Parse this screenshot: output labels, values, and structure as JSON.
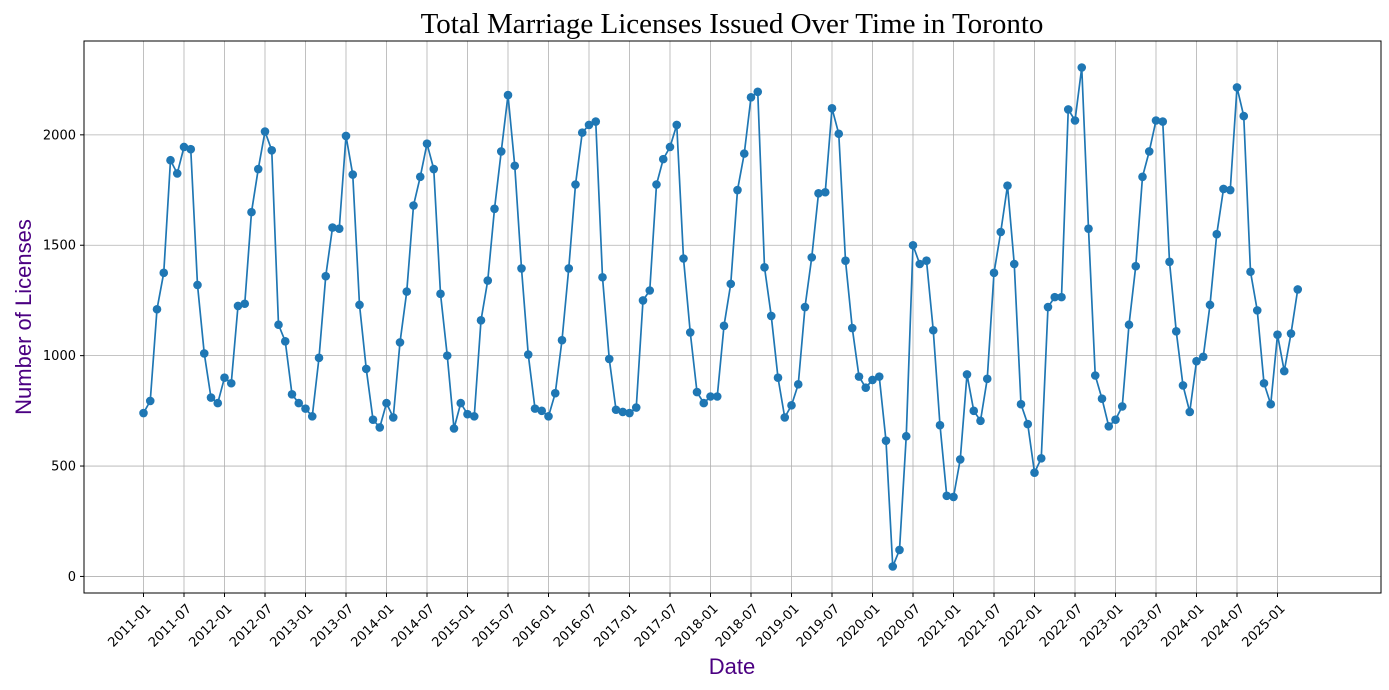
{
  "chart_data": {
    "type": "line",
    "title": "Total Marriage Licenses Issued Over Time in Toronto",
    "xlabel": "Date",
    "ylabel": "Number of Licenses",
    "x_ticks": [
      "2011-01",
      "2011-07",
      "2012-01",
      "2012-07",
      "2013-01",
      "2013-07",
      "2014-01",
      "2014-07",
      "2015-01",
      "2015-07",
      "2016-01",
      "2016-07",
      "2017-01",
      "2017-07",
      "2018-01",
      "2018-07",
      "2019-01",
      "2019-07",
      "2020-01",
      "2020-07",
      "2021-01",
      "2021-07",
      "2022-01",
      "2022-07",
      "2023-01",
      "2023-07",
      "2024-01",
      "2024-07",
      "2025-01"
    ],
    "y_ticks": [
      0,
      500,
      1000,
      1500,
      2000
    ],
    "ylim": [
      -75,
      2425
    ],
    "grid": true,
    "series_color": "#1f77b4",
    "label_color": "#4b0082",
    "start": "2011-01",
    "series": [
      {
        "values": [
          740,
          795,
          1210,
          1375,
          1885,
          1825,
          1945,
          1935,
          1320,
          1010,
          810,
          785,
          900,
          875,
          1225,
          1235,
          1650,
          1845,
          2015,
          1930,
          1140,
          1065,
          825,
          785,
          760,
          725,
          990,
          1360,
          1580,
          1575,
          1995,
          1820,
          1230,
          940,
          710,
          675,
          785,
          720,
          1060,
          1290,
          1680,
          1810,
          1960,
          1845,
          1280,
          1000,
          670,
          785,
          735,
          725,
          1160,
          1340,
          1665,
          1925,
          2180,
          1860,
          1395,
          1005,
          760,
          750,
          725,
          830,
          1070,
          1395,
          1775,
          2010,
          2045,
          2060,
          1355,
          985,
          755,
          745,
          740,
          765,
          1250,
          1295,
          1775,
          1890,
          1945,
          2045,
          1440,
          1105,
          835,
          785,
          815,
          815,
          1135,
          1325,
          1750,
          1915,
          2170,
          2195,
          1400,
          1180,
          900,
          720,
          775,
          870,
          1220,
          1445,
          1735,
          1740,
          2120,
          2005,
          1430,
          1125,
          905,
          855,
          890,
          905,
          615,
          45,
          120,
          635,
          1500,
          1415,
          1430,
          1115,
          685,
          365,
          360,
          530,
          915,
          750,
          705,
          895,
          1375,
          1560,
          1770,
          1415,
          780,
          690,
          470,
          535,
          1220,
          1265,
          1265,
          2115,
          2065,
          2305,
          1575,
          910,
          805,
          680,
          710,
          770,
          1140,
          1405,
          1810,
          1925,
          2065,
          2060,
          1425,
          1110,
          865,
          745,
          975,
          995,
          1230,
          1550,
          1755,
          1750,
          2215,
          2085,
          1380,
          1205,
          875,
          780,
          1095,
          930,
          1100,
          1300
        ]
      }
    ]
  }
}
